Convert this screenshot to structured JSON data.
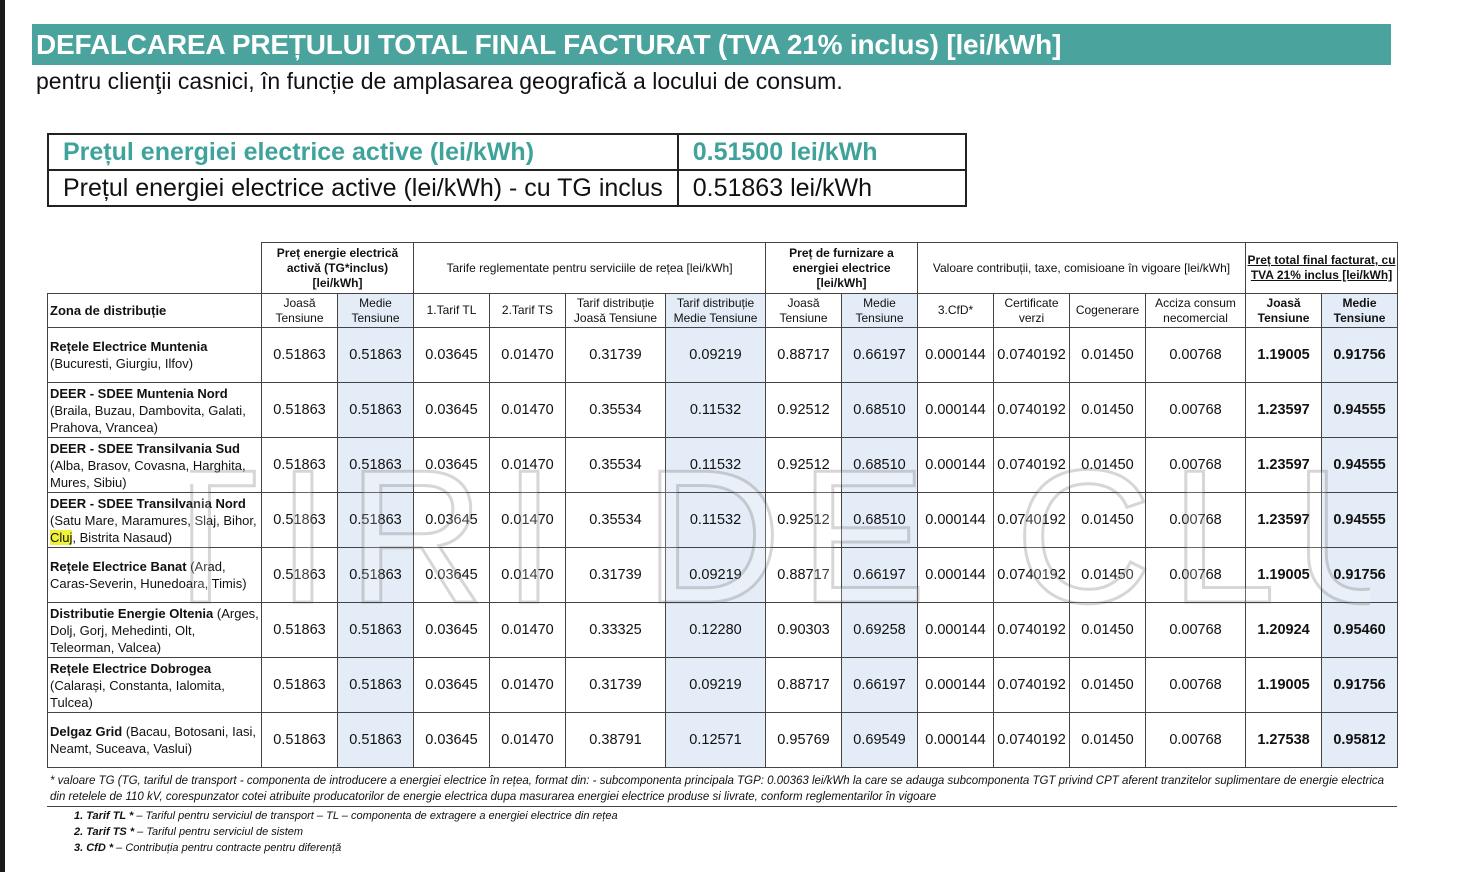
{
  "header": {
    "title": "DEFALCAREA PREȚULUI TOTAL FINAL FACTURAT (TVA 21% inclus) [lei/kWh]",
    "subtitle": "pentru clienţii casnici, în funcție de amplasarea geografică a locului de consum."
  },
  "price_box": [
    {
      "label": "Prețul energiei electrice active (lei/kWh)",
      "value": "0.51500 lei/kWh"
    },
    {
      "label": "Prețul energiei electrice active (lei/kWh) - cu TG inclus",
      "value": "0.51863 lei/kWh"
    }
  ],
  "table": {
    "group_headers": {
      "energy": "Preț energie electrică activă (TG*inclus) [lei/kWh]",
      "network": "Tarife reglementate pentru serviciile de rețea [lei/kWh]",
      "supply": "Preț de furnizare a energiei electrice [lei/kWh]",
      "taxes": "Valoare contribuții, taxe, comisioane în vigoare [lei/kWh]",
      "total": "Preț total final facturat, cu TVA 21% inclus [lei/kWh]"
    },
    "col_headers": {
      "zone": "Zona de distribuție",
      "low": "Joasă Tensiune",
      "medium": "Medie Tensiune",
      "tl": "1.Tarif TL",
      "ts": "2.Tarif TS",
      "dist_low": "Tarif distribuție Joasă Tensiune",
      "dist_med": "Tarif distribuție Medie Tensiune",
      "cfd": "3.CfD*",
      "cert": "Certificate verzi",
      "cogen": "Cogenerare",
      "excise": "Acciza consum necomercial"
    },
    "rows": [
      {
        "name": "Rețele Electrice Muntenia",
        "areas_a": "(Bucuresti, Giurgiu, Ilfov)",
        "areas_b": "",
        "areas_c": "",
        "v": [
          "0.51863",
          "0.51863",
          "0.03645",
          "0.01470",
          "0.31739",
          "0.09219",
          "0.88717",
          "0.66197",
          "0.000144",
          "0.0740192",
          "0.01450",
          "0.00768",
          "1.19005",
          "0.91756"
        ]
      },
      {
        "name": "DEER - SDEE Muntenia Nord",
        "areas_a": "(Braila, Buzau, Dambovita, Galati, Prahova, Vrancea)",
        "areas_b": "",
        "areas_c": "",
        "v": [
          "0.51863",
          "0.51863",
          "0.03645",
          "0.01470",
          "0.35534",
          "0.11532",
          "0.92512",
          "0.68510",
          "0.000144",
          "0.0740192",
          "0.01450",
          "0.00768",
          "1.23597",
          "0.94555"
        ]
      },
      {
        "name": "DEER - SDEE Transilvania Sud",
        "areas_a": "(Alba, Brasov, Covasna, Harghita, Mures, Sibiu)",
        "areas_b": "",
        "areas_c": "",
        "v": [
          "0.51863",
          "0.51863",
          "0.03645",
          "0.01470",
          "0.35534",
          "0.11532",
          "0.92512",
          "0.68510",
          "0.000144",
          "0.0740192",
          "0.01450",
          "0.00768",
          "1.23597",
          "0.94555"
        ]
      },
      {
        "name": "DEER - SDEE Transilvania Nord",
        "areas_a": "(Satu Mare, Maramures, Slaj, Bihor, ",
        "areas_b": "Cluj",
        "areas_c": ", Bistrita Nasaud)",
        "v": [
          "0.51863",
          "0.51863",
          "0.03645",
          "0.01470",
          "0.35534",
          "0.11532",
          "0.92512",
          "0.68510",
          "0.000144",
          "0.0740192",
          "0.01450",
          "0.00768",
          "1.23597",
          "0.94555"
        ]
      },
      {
        "name": "Rețele Electrice Banat",
        "areas_a": " (Arad, Caras-Severin, Hunedoara, Timis)",
        "areas_b": "",
        "areas_c": "",
        "v": [
          "0.51863",
          "0.51863",
          "0.03645",
          "0.01470",
          "0.31739",
          "0.09219",
          "0.88717",
          "0.66197",
          "0.000144",
          "0.0740192",
          "0.01450",
          "0.00768",
          "1.19005",
          "0.91756"
        ]
      },
      {
        "name": "Distributie Energie Oltenia",
        "areas_a": "(Arges, Dolj, Gorj, Mehedinti, Olt, Teleorman, Valcea)",
        "areas_b": "",
        "areas_c": "",
        "v": [
          "0.51863",
          "0.51863",
          "0.03645",
          "0.01470",
          "0.33325",
          "0.12280",
          "0.90303",
          "0.69258",
          "0.000144",
          "0.0740192",
          "0.01450",
          "0.00768",
          "1.20924",
          "0.95460"
        ]
      },
      {
        "name": "Rețele Electrice Dobrogea",
        "areas_a": "(Calarași, Constanta, Ialomita, Tulcea)",
        "areas_b": "",
        "areas_c": "",
        "v": [
          "0.51863",
          "0.51863",
          "0.03645",
          "0.01470",
          "0.31739",
          "0.09219",
          "0.88717",
          "0.66197",
          "0.000144",
          "0.0740192",
          "0.01450",
          "0.00768",
          "1.19005",
          "0.91756"
        ]
      },
      {
        "name": "Delgaz Grid",
        "areas_a": " (Bacau, Botosani, Iasi, Neamt, Suceava, Vaslui)",
        "areas_b": "",
        "areas_c": "",
        "v": [
          "0.51863",
          "0.51863",
          "0.03645",
          "0.01470",
          "0.38791",
          "0.12571",
          "0.95769",
          "0.69549",
          "0.000144",
          "0.0740192",
          "0.01450",
          "0.00768",
          "1.27538",
          "0.95812"
        ]
      }
    ]
  },
  "footnote": "* valoare TG (TG, tariful de transport - componenta de introducere a energiei electrice în rețea, format din: - subcomponenta principala TGP: 0.00363 lei/kWh la care se adauga subcomponenta TGT privind CPT aferent tranzitelor suplimentare de energie electrica din retelele de 110 kV, corespunzator cotei atribuite producatorilor de energie electrica dupa masurarea energiei electrice produse si livrate, conform reglementarilor în vigoare",
  "notes": [
    {
      "term": "1. Tarif TL *",
      "text": " – Tariful pentru serviciul de transport – TL – componenta de extragere a energiei electrice din rețea"
    },
    {
      "term": "2. Tarif TS *",
      "text": " – Tariful pentru serviciul de sistem"
    },
    {
      "term": "3. CfD *",
      "text": " – Contribuția pentru contracte pentru diferență"
    }
  ],
  "watermark": "STIRI DE CLUJ"
}
